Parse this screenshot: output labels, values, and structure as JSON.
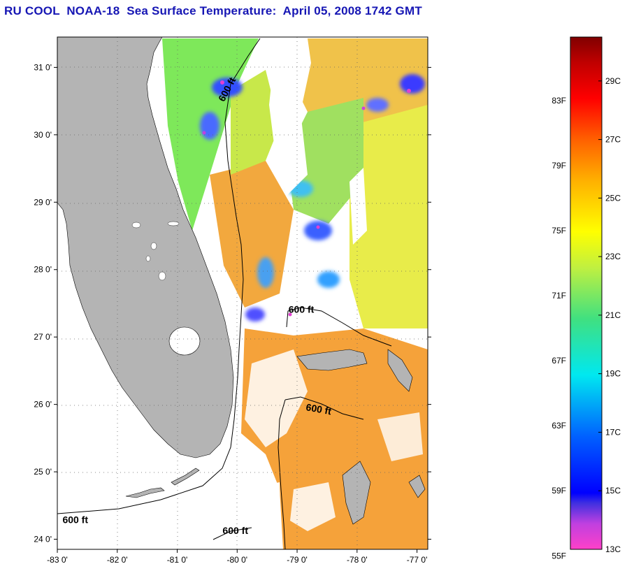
{
  "title": "RU COOL  NOAA-18  Sea Surface Temperature:  April 05, 2008 1742 GMT",
  "colors": {
    "land": "#b4b4b4",
    "cloud_mask": "#ffffff",
    "title": "#1616b4"
  },
  "map": {
    "lon_ticks": [
      {
        "value": -83,
        "label": "-83 0'"
      },
      {
        "value": -82,
        "label": "-82 0'"
      },
      {
        "value": -81,
        "label": "-81 0'"
      },
      {
        "value": -80,
        "label": "-80 0'"
      },
      {
        "value": -79,
        "label": "-79 0'"
      },
      {
        "value": -78,
        "label": "-78 0'"
      },
      {
        "value": -77,
        "label": "-77 0'"
      }
    ],
    "lat_ticks": [
      {
        "value": 31,
        "label": "31 0'"
      },
      {
        "value": 30,
        "label": "30 0'"
      },
      {
        "value": 29,
        "label": "29 0'"
      },
      {
        "value": 28,
        "label": "28 0'"
      },
      {
        "value": 27,
        "label": "27 0'"
      },
      {
        "value": 26,
        "label": "26 0'"
      },
      {
        "value": 25,
        "label": "25 0'"
      },
      {
        "value": 24,
        "label": "24 0'"
      }
    ],
    "isobath_labels": [
      {
        "text": "600 ft",
        "lon": -80.12,
        "lat": 30.65,
        "angle": -62
      },
      {
        "text": "600 ft",
        "lon": -78.93,
        "lat": 27.36,
        "angle": 0
      },
      {
        "text": "600 ft",
        "lon": -78.65,
        "lat": 25.88,
        "angle": 10
      },
      {
        "text": "600 ft",
        "lon": -82.7,
        "lat": 24.24,
        "angle": 0
      },
      {
        "text": "600 ft",
        "lon": -80.03,
        "lat": 24.08,
        "angle": 0
      }
    ]
  },
  "colorbar": {
    "f_labels": [
      {
        "value": 83,
        "label": "83F"
      },
      {
        "value": 79,
        "label": "79F"
      },
      {
        "value": 75,
        "label": "75F"
      },
      {
        "value": 71,
        "label": "71F"
      },
      {
        "value": 67,
        "label": "67F"
      },
      {
        "value": 63,
        "label": "63F"
      },
      {
        "value": 59,
        "label": "59F"
      },
      {
        "value": 55,
        "label": "55F"
      }
    ],
    "c_labels": [
      {
        "value": 29,
        "label": "29C"
      },
      {
        "value": 27,
        "label": "27C"
      },
      {
        "value": 25,
        "label": "25C"
      },
      {
        "value": 23,
        "label": "23C"
      },
      {
        "value": 21,
        "label": "21C"
      },
      {
        "value": 19,
        "label": "19C"
      },
      {
        "value": 17,
        "label": "17C"
      },
      {
        "value": 15,
        "label": "15C"
      },
      {
        "value": 13,
        "label": "13C"
      }
    ],
    "range_c": [
      13,
      30.5
    ]
  }
}
